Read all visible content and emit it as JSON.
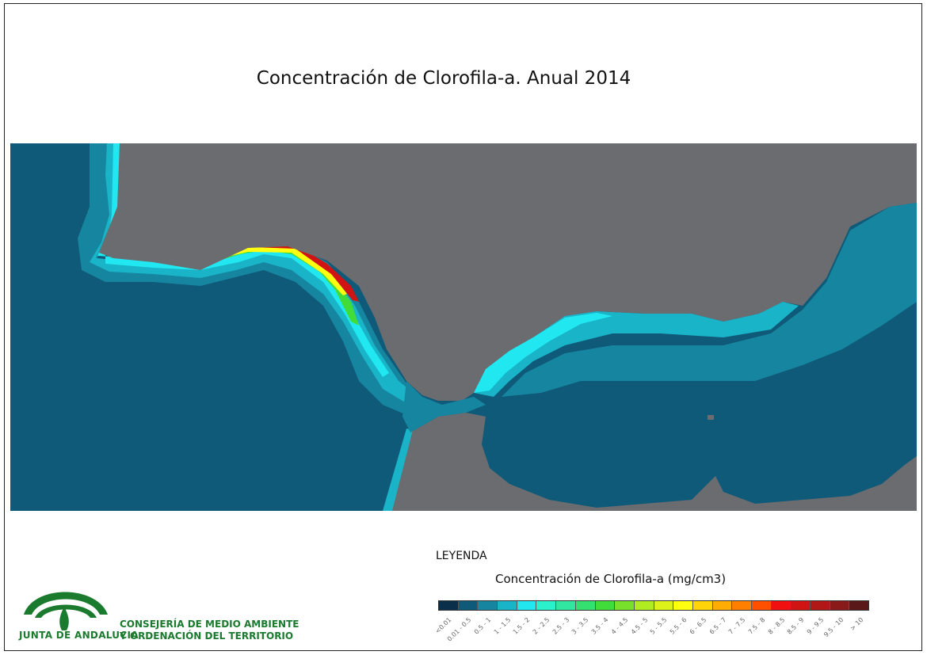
{
  "title": "Concentración de Clorofila-a. Anual 2014",
  "legend": {
    "heading": "LEYENDA",
    "subtitle": "Concentración de Clorofila-a (mg/cm3)",
    "classes": [
      {
        "label": "<0.01",
        "color": "#0a2f4a"
      },
      {
        "label": "0.01 - 0.5",
        "color": "#0f5a78"
      },
      {
        "label": "0.5 - 1",
        "color": "#1686a0"
      },
      {
        "label": "1 - 1.5",
        "color": "#1ab4c8"
      },
      {
        "label": "1.5 - 2",
        "color": "#21e8f0"
      },
      {
        "label": "2 - 2.5",
        "color": "#2af0cc"
      },
      {
        "label": "2.5 - 3",
        "color": "#30e6a0"
      },
      {
        "label": "3 - 3.5",
        "color": "#36e070"
      },
      {
        "label": "3.5 - 4",
        "color": "#42dc3a"
      },
      {
        "label": "4 - 4.5",
        "color": "#78e02a"
      },
      {
        "label": "4.5 - 5",
        "color": "#b0ec20"
      },
      {
        "label": "5 - 5.5",
        "color": "#dcf218"
      },
      {
        "label": "5.5 - 6",
        "color": "#ffff10"
      },
      {
        "label": "6 - 6.5",
        "color": "#ffd408"
      },
      {
        "label": "6.5 - 7",
        "color": "#ffac04"
      },
      {
        "label": "7 - 7.5",
        "color": "#ff8000"
      },
      {
        "label": "7.5 - 8",
        "color": "#ff5000"
      },
      {
        "label": "8 - 8.5",
        "color": "#f01010"
      },
      {
        "label": "8.5 - 9",
        "color": "#d01414"
      },
      {
        "label": "9 - 9.5",
        "color": "#b01818"
      },
      {
        "label": "9.5 - 10",
        "color": "#8a1a1a"
      },
      {
        "label": "> 10",
        "color": "#5a1818"
      }
    ]
  },
  "organization": {
    "logo_text": "JUNTA DE ANDALUCIA",
    "line1": "CONSEJERÍA DE MEDIO AMBIENTE",
    "line2": "Y ORDENACIÓN DEL TERRITORIO"
  },
  "colors": {
    "land": "#6b6c70",
    "sea_deep": "#0f5a78",
    "sea_mid": "#1686a0",
    "sea_coastal": "#1ab4c8",
    "brand_green": "#1a7a2e"
  }
}
